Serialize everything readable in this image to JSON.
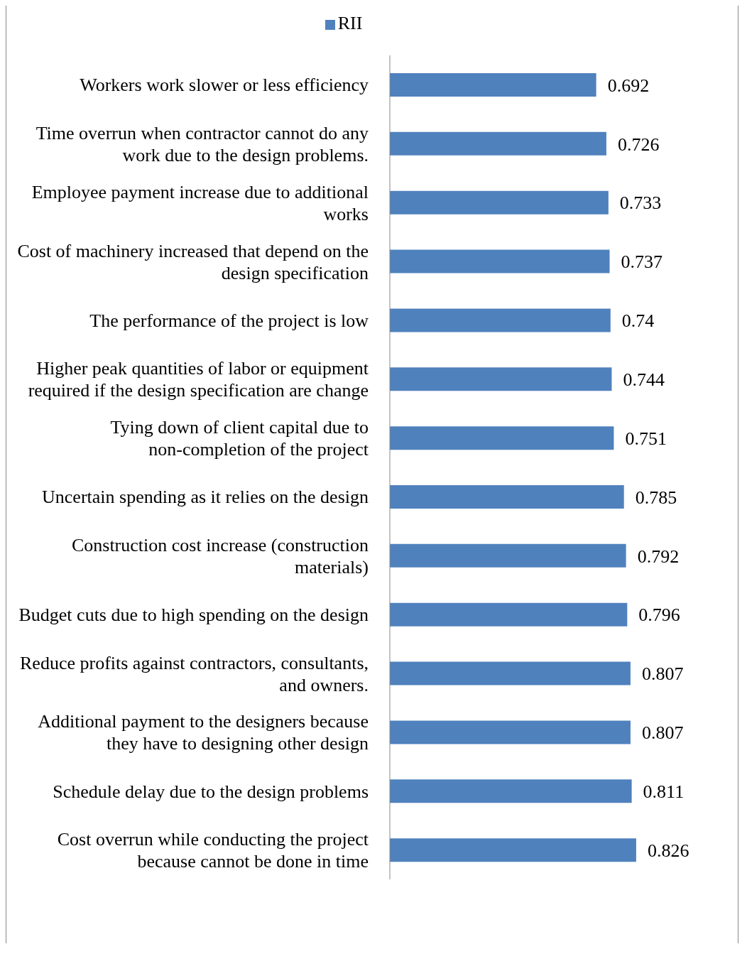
{
  "chart_data": {
    "type": "bar",
    "orientation": "horizontal",
    "categories": [
      "Workers work slower or less efficiency",
      "Time overrun when contractor cannot do any work due to the design problems.",
      "Employee payment increase due to additional works",
      "Cost of machinery increased that depend on the design specification",
      "The performance of the project is low",
      "Higher peak quantities of labor or equipment required if the design specification are change",
      "Tying down of client capital due to non-completion of the project",
      "Uncertain spending as it relies on the design",
      "Construction cost increase (construction materials)",
      "Budget cuts due to high spending on the design",
      "Reduce profits against contractors, consultants, and owners.",
      "Additional payment to the designers because they have to designing other design",
      "Schedule delay due to the design problems",
      "Cost overrun while conducting the project because cannot be done in time"
    ],
    "series": [
      {
        "name": "RII",
        "color": "#4f81bd",
        "values": [
          0.692,
          0.726,
          0.733,
          0.737,
          0.74,
          0.744,
          0.751,
          0.785,
          0.792,
          0.796,
          0.807,
          0.807,
          0.811,
          0.826
        ]
      }
    ],
    "tick_labels": "y",
    "data_labels": true,
    "legend": "top",
    "grid": false
  }
}
